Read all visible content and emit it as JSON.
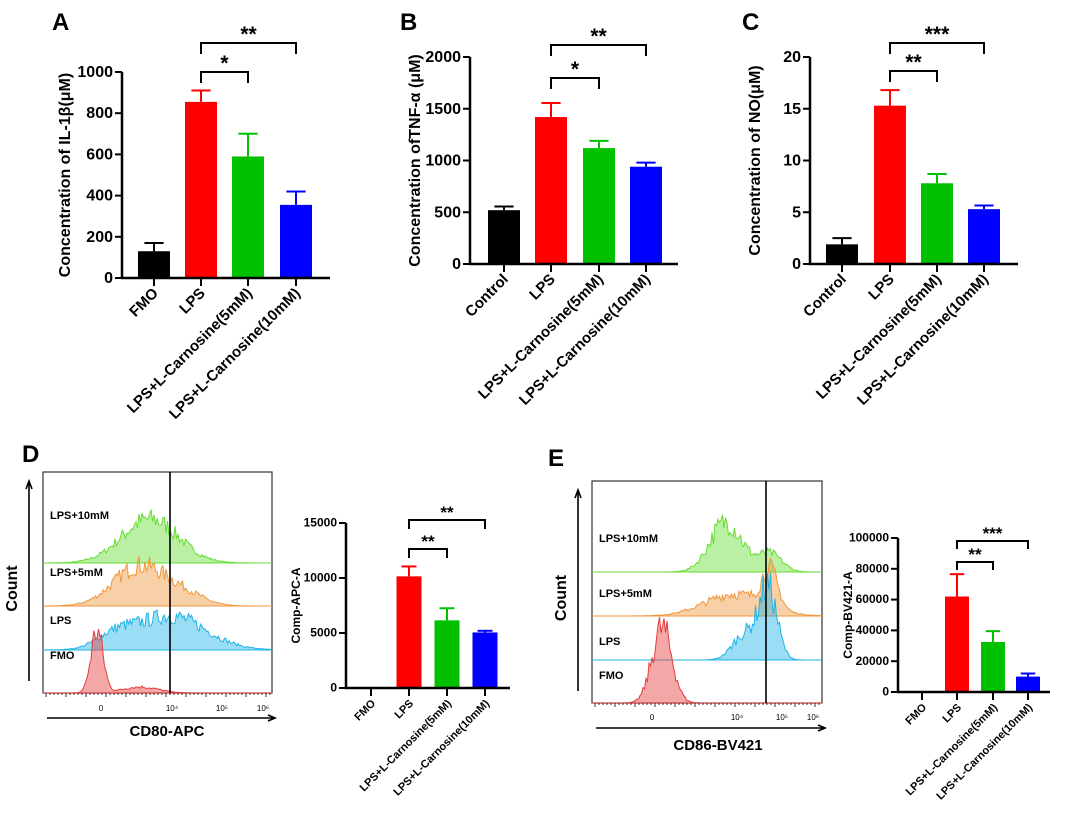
{
  "panel_labels": [
    "A",
    "B",
    "C",
    "D",
    "E"
  ],
  "chart_data": [
    {
      "id": "A",
      "type": "bar",
      "ylabel": "Concentration of IL-1β(μM)",
      "categories": [
        "FMO",
        "LPS",
        "LPS+L-Carnosine(5mM)",
        "LPS+L-Carnosine(10mM)"
      ],
      "values": [
        130,
        855,
        590,
        355
      ],
      "errors": [
        40,
        55,
        110,
        65
      ],
      "ylim": [
        0,
        1000
      ],
      "yticks": [
        0,
        200,
        400,
        600,
        800,
        1000
      ],
      "colors": [
        "#000000",
        "#ff0000",
        "#00c000",
        "#0000ff"
      ],
      "significance": [
        {
          "from": 1,
          "to": 2,
          "label": "*"
        },
        {
          "from": 1,
          "to": 3,
          "label": "**"
        }
      ]
    },
    {
      "id": "B",
      "type": "bar",
      "ylabel": "Concentration ofTNF-α (μM)",
      "categories": [
        "Control",
        "LPS",
        "LPS+L-Carnosine(5mM)",
        "LPS+L-Carnosine(10mM)"
      ],
      "values": [
        520,
        1420,
        1120,
        940
      ],
      "errors": [
        35,
        135,
        70,
        40
      ],
      "ylim": [
        0,
        2000
      ],
      "yticks": [
        0,
        500,
        1000,
        1500,
        2000
      ],
      "colors": [
        "#000000",
        "#ff0000",
        "#00c000",
        "#0000ff"
      ],
      "significance": [
        {
          "from": 1,
          "to": 2,
          "label": "*"
        },
        {
          "from": 1,
          "to": 3,
          "label": "**"
        }
      ]
    },
    {
      "id": "C",
      "type": "bar",
      "ylabel": "Concentration of NO(μM)",
      "categories": [
        "Control",
        "LPS",
        "LPS+L-Carnosine(5mM)",
        "LPS+L-Carnosine(10mM)"
      ],
      "values": [
        1.9,
        15.3,
        7.8,
        5.3
      ],
      "errors": [
        0.6,
        1.5,
        0.9,
        0.35
      ],
      "ylim": [
        0,
        20
      ],
      "yticks": [
        0,
        5,
        10,
        15,
        20
      ],
      "colors": [
        "#000000",
        "#ff0000",
        "#00c000",
        "#0000ff"
      ],
      "significance": [
        {
          "from": 1,
          "to": 2,
          "label": "**"
        },
        {
          "from": 1,
          "to": 3,
          "label": "***"
        }
      ]
    },
    {
      "id": "D-hist",
      "type": "histogram",
      "xlabel": "CD80-APC",
      "ylabel": "Count",
      "xticks": [
        "0",
        "10⁴",
        "10⁵",
        "10⁶"
      ],
      "tracks": [
        {
          "label": "LPS+10mM",
          "color": "#66dd33"
        },
        {
          "label": "LPS+5mM",
          "color": "#f0963c"
        },
        {
          "label": "LPS",
          "color": "#1eb4e6"
        },
        {
          "label": "FMO",
          "color": "#e63c3c"
        }
      ]
    },
    {
      "id": "D",
      "type": "bar",
      "ylabel": "Comp-APC-A",
      "categories": [
        "FMO",
        "LPS",
        "LPS+L-Carnosine(5mM)",
        "LPS+L-Carnosine(10mM)"
      ],
      "values": [
        0,
        10150,
        6150,
        5050
      ],
      "errors": [
        0,
        900,
        1100,
        150
      ],
      "ylim": [
        0,
        15000
      ],
      "yticks": [
        0,
        5000,
        10000,
        15000
      ],
      "colors": [
        "#000000",
        "#ff0000",
        "#00c000",
        "#0000ff"
      ],
      "significance": [
        {
          "from": 1,
          "to": 2,
          "label": "**"
        },
        {
          "from": 1,
          "to": 3,
          "label": "**"
        }
      ]
    },
    {
      "id": "E-hist",
      "type": "histogram",
      "xlabel": "CD86-BV421",
      "ylabel": "Count",
      "xticks": [
        "0",
        "10⁴",
        "10⁵",
        "10⁶"
      ],
      "tracks": [
        {
          "label": "LPS+10mM",
          "color": "#66dd33"
        },
        {
          "label": "LPS+5mM",
          "color": "#f0963c"
        },
        {
          "label": "LPS",
          "color": "#1eb4e6"
        },
        {
          "label": "FMO",
          "color": "#e63c3c"
        }
      ]
    },
    {
      "id": "E",
      "type": "bar",
      "ylabel": "Comp-BV421-A",
      "categories": [
        "FMO",
        "LPS",
        "LPS+L-Carnosine(5mM)",
        "LPS+L-Carnosine(10mM)"
      ],
      "values": [
        500,
        62000,
        32500,
        10000
      ],
      "errors": [
        0,
        14500,
        7000,
        2000
      ],
      "ylim": [
        0,
        100000
      ],
      "yticks": [
        0,
        20000,
        40000,
        60000,
        80000,
        100000
      ],
      "colors": [
        "#000000",
        "#ff0000",
        "#00c000",
        "#0000ff"
      ],
      "significance": [
        {
          "from": 1,
          "to": 2,
          "label": "**"
        },
        {
          "from": 1,
          "to": 3,
          "label": "***"
        }
      ]
    }
  ]
}
